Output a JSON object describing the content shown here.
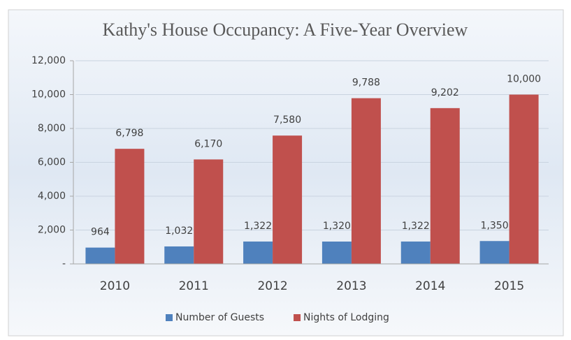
{
  "chart_data": {
    "type": "bar",
    "title": "Kathy's House Occupancy: A Five-Year Overview",
    "categories": [
      "2010",
      "2011",
      "2012",
      "2013",
      "2014",
      "2015"
    ],
    "series": [
      {
        "name": "Number of Guests",
        "color": "#4f81bd",
        "values": [
          964,
          1032,
          1322,
          1320,
          1322,
          1350
        ],
        "value_labels": [
          "964",
          "1,032",
          "1,322",
          "1,320",
          "1,322",
          "1,350"
        ]
      },
      {
        "name": "Nights of Lodging",
        "color": "#c0504d",
        "values": [
          6798,
          6170,
          7580,
          9788,
          9202,
          10000
        ],
        "value_labels": [
          "6,798",
          "6,170",
          "7,580",
          "9,788",
          "9,202",
          "10,000"
        ]
      }
    ],
    "ylim": [
      0,
      12000
    ],
    "yticks": [
      {
        "value": 0,
        "label": "-"
      },
      {
        "value": 2000,
        "label": "2,000"
      },
      {
        "value": 4000,
        "label": "4,000"
      },
      {
        "value": 6000,
        "label": "6,000"
      },
      {
        "value": 8000,
        "label": "8,000"
      },
      {
        "value": 10000,
        "label": "10,000"
      },
      {
        "value": 12000,
        "label": "12,000"
      }
    ],
    "grid": true,
    "legend": "bottom"
  }
}
